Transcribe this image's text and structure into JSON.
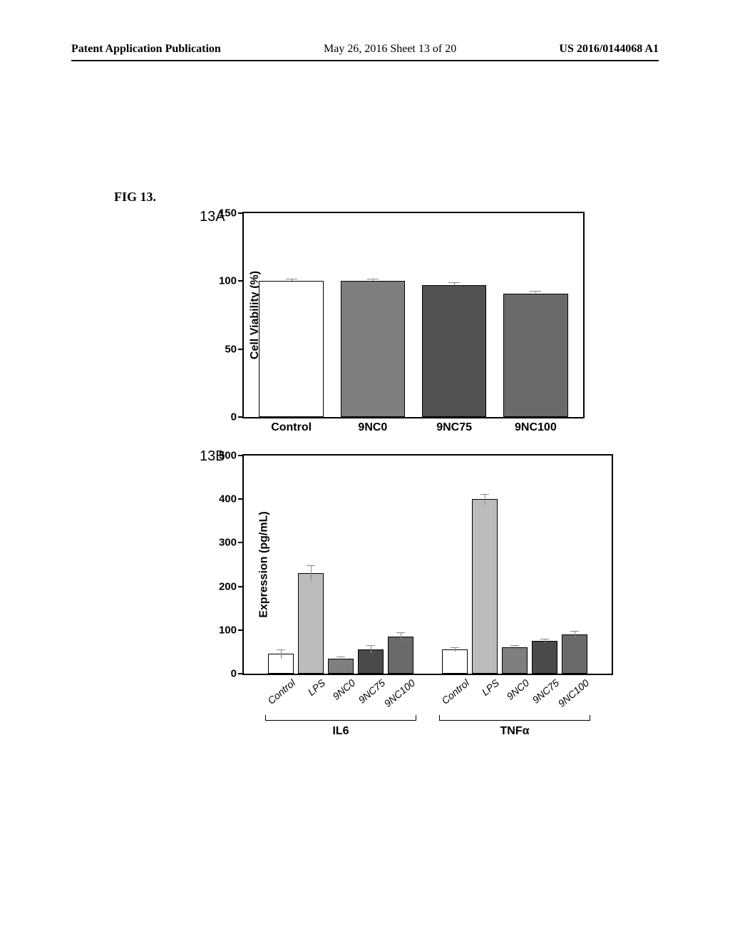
{
  "header": {
    "left": "Patent Application Publication",
    "mid": "May 26, 2016  Sheet 13 of 20",
    "right": "US 2016/0144068 A1"
  },
  "figureLabel": "FIG 13.",
  "panel13A": {
    "label": "13A",
    "ylabel": "Cell Viability (%)",
    "ylim": [
      0,
      150
    ],
    "yticks": [
      0,
      50,
      100,
      150
    ],
    "bars": [
      {
        "label": "Control",
        "value": 100,
        "fill": "#ffffff",
        "err": 2
      },
      {
        "label": "9NC0",
        "value": 100,
        "fill": "#7f7f7f",
        "err": 2
      },
      {
        "label": "9NC75",
        "value": 97,
        "fill": "#525252",
        "err": 2
      },
      {
        "label": "9NC100",
        "value": 91,
        "fill": "#6a6a6a",
        "err": 2
      }
    ],
    "barWidthFrac": 0.19,
    "gapFrac": 0.05,
    "colors": {
      "border": "#000000",
      "errbar": "#888888"
    }
  },
  "panel13B": {
    "label": "13B",
    "ylabel": "Expression (pg/mL)",
    "ylim": [
      0,
      500
    ],
    "yticks": [
      0,
      100,
      200,
      300,
      400,
      500
    ],
    "groups": [
      {
        "name": "IL6",
        "bars": [
          {
            "label": "Control",
            "value": 45,
            "fill": "#ffffff",
            "err": 10
          },
          {
            "label": "LPS",
            "value": 230,
            "fill": "#bcbcbc",
            "err": 18
          },
          {
            "label": "9NC0",
            "value": 35,
            "fill": "#7f7f7f",
            "err": 5
          },
          {
            "label": "9NC75",
            "value": 55,
            "fill": "#4a4a4a",
            "err": 10
          },
          {
            "label": "9NC100",
            "value": 85,
            "fill": "#6a6a6a",
            "err": 10
          }
        ]
      },
      {
        "name": "TNFα",
        "bars": [
          {
            "label": "Control",
            "value": 55,
            "fill": "#ffffff",
            "err": 5
          },
          {
            "label": "LPS",
            "value": 400,
            "fill": "#bcbcbc",
            "err": 12
          },
          {
            "label": "9NC0",
            "value": 60,
            "fill": "#7f7f7f",
            "err": 5
          },
          {
            "label": "9NC75",
            "value": 75,
            "fill": "#4a4a4a",
            "err": 5
          },
          {
            "label": "9NC100",
            "value": 90,
            "fill": "#6a6a6a",
            "err": 8
          }
        ]
      }
    ],
    "barWidthPx": 36,
    "gapWithinPx": 6,
    "gapBetweenGroupsPx": 40,
    "colors": {
      "border": "#000000",
      "errbar": "#888888"
    }
  }
}
